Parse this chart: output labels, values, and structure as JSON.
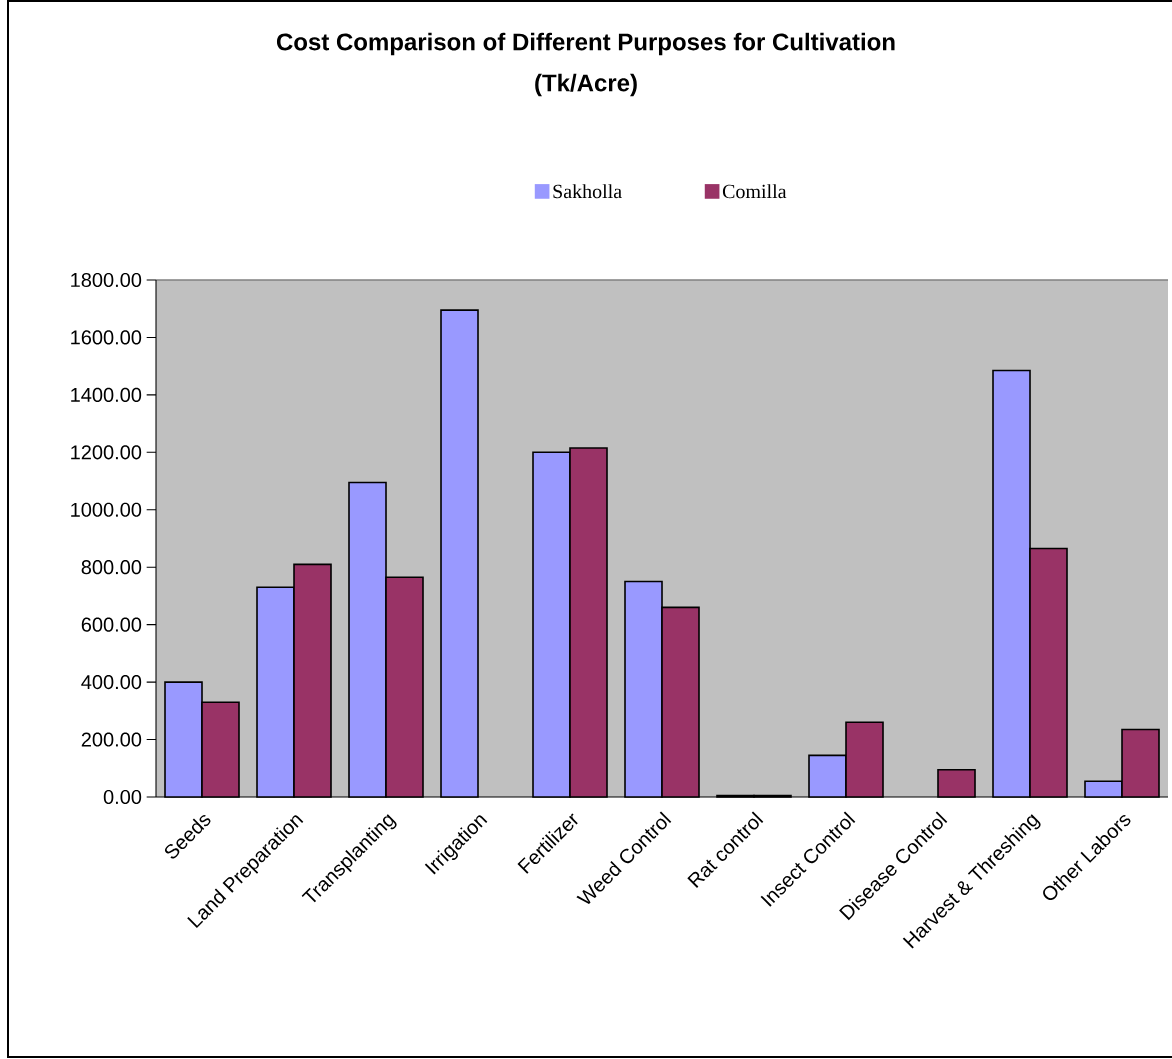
{
  "chart_data": {
    "type": "bar",
    "title": "Cost Comparison of Different Purposes for Cultivation",
    "subtitle": "(Tk/Acre)",
    "categories": [
      "Seeds",
      "Land Preparation",
      "Transplanting",
      "Irrigation",
      "Fertilizer",
      "Weed Control",
      "Rat control",
      "Insect Control",
      "Disease Control",
      "Harvest & Threshing",
      "Other Labors"
    ],
    "series": [
      {
        "name": "Sakholla",
        "color": "#9999ff",
        "values": [
          400,
          730,
          1095,
          1695,
          1200,
          750,
          5,
          145,
          null,
          1485,
          55
        ]
      },
      {
        "name": "Comilla",
        "color": "#993366",
        "values": [
          330,
          810,
          765,
          null,
          1215,
          660,
          5,
          260,
          95,
          865,
          235
        ]
      }
    ],
    "ylim": [
      0,
      1800
    ],
    "yticks": [
      {
        "value": 0,
        "label": "0.00"
      },
      {
        "value": 200,
        "label": "200.00"
      },
      {
        "value": 400,
        "label": "400.00"
      },
      {
        "value": 600,
        "label": "600.00"
      },
      {
        "value": 800,
        "label": "800.00"
      },
      {
        "value": 1000,
        "label": "1000.00"
      },
      {
        "value": 1200,
        "label": "1200.00"
      },
      {
        "value": 1400,
        "label": "1400.00"
      },
      {
        "value": 1600,
        "label": "1600.00"
      },
      {
        "value": 1800,
        "label": "1800.00"
      }
    ],
    "grid": false,
    "legend": "top"
  }
}
